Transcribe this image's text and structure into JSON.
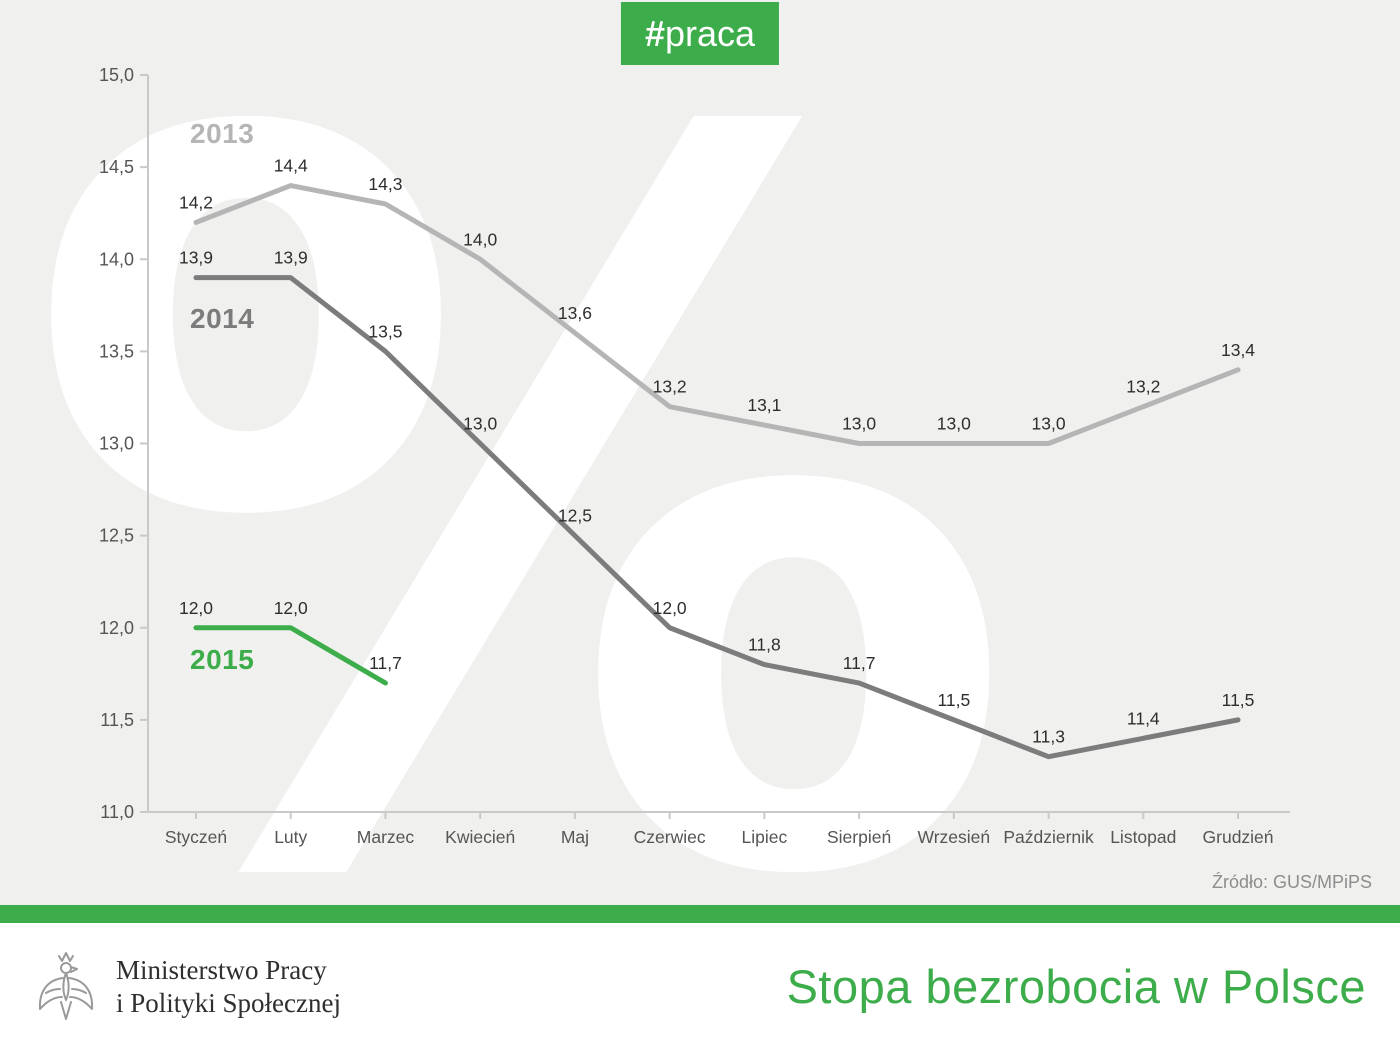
{
  "badge": {
    "hash": "#",
    "word": "praca"
  },
  "watermark": "%",
  "chart_data": {
    "type": "line",
    "categories": [
      "Styczeń",
      "Luty",
      "Marzec",
      "Kwiecień",
      "Maj",
      "Czerwiec",
      "Lipiec",
      "Sierpień",
      "Wrzesień",
      "Październik",
      "Listopad",
      "Grudzień"
    ],
    "series": [
      {
        "name": "2013",
        "color": "#b5b5b5",
        "values": [
          14.2,
          14.4,
          14.3,
          14.0,
          13.6,
          13.2,
          13.1,
          13.0,
          13.0,
          13.0,
          13.2,
          13.4
        ]
      },
      {
        "name": "2014",
        "color": "#7c7c7c",
        "values": [
          13.9,
          13.9,
          13.5,
          13.0,
          12.5,
          12.0,
          11.8,
          11.7,
          11.5,
          11.3,
          11.4,
          11.5
        ]
      },
      {
        "name": "2015",
        "color": "#3dad4b",
        "values": [
          12.0,
          12.0,
          11.7
        ]
      }
    ],
    "ylim": [
      11.0,
      15.0
    ],
    "ytick_step": 0.5,
    "yticks_labels": [
      "15,0",
      "14,5",
      "14,0",
      "13,5",
      "13,0",
      "12,5",
      "12,0",
      "11,5",
      "11,0"
    ],
    "decimal_comma": true,
    "title": "",
    "grid": false,
    "legend_position": "inline-left"
  },
  "source": {
    "label": "Źródło: GUS/MPiPS"
  },
  "footer": {
    "ministry_line1": "Ministerstwo Pracy",
    "ministry_line2": "i Polityki Społecznej",
    "title": "Stopa bezrobocia w Polsce"
  },
  "colors": {
    "accent_green": "#3dad4b",
    "background": "#f0f0ee",
    "axis": "#c9c9c9",
    "tick_text": "#555555",
    "data_label": "#2e2e2e",
    "source_text": "#8d8d8d"
  }
}
